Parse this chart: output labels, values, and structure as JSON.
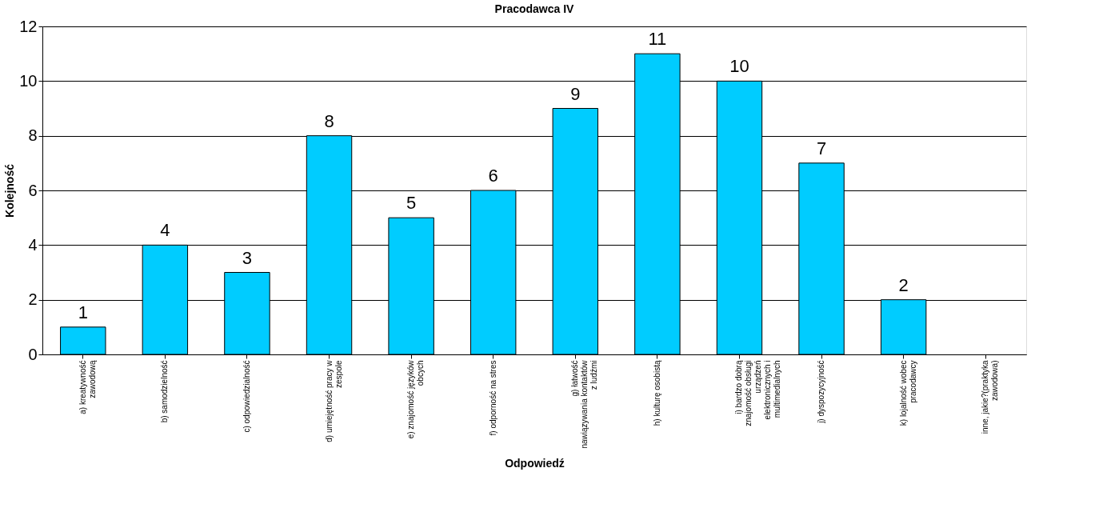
{
  "chart_data": {
    "type": "bar",
    "title": "Pracodawca IV",
    "xlabel": "Odpowiedź",
    "ylabel": "Kolejność",
    "categories": [
      "a) kreatywność zawodową",
      "b) samodzielność",
      "c) odpowiedzialność",
      "d) umiejętność pracy w zespole",
      "e) znajomość języków obcych",
      "f) odporność na stres",
      "g) łatwość nawiązywania kontaktów z ludźmi",
      "h) kulturę osobistą",
      "i) bardzo dobrą znajomość obsługi urządzeń elektronicznych i multimedialnych",
      "j) dyspozycyjność",
      "k) lojalność wobec pracodawcy",
      "inne, jakie?(praktyka zawodowa)"
    ],
    "values": [
      1,
      4,
      3,
      8,
      5,
      6,
      9,
      11,
      10,
      7,
      2,
      null
    ],
    "color": "#00ccff",
    "ylim": [
      0,
      12
    ],
    "yticks": [
      0,
      2,
      4,
      6,
      8,
      10,
      12
    ],
    "grid": "y",
    "data_labels": true
  }
}
